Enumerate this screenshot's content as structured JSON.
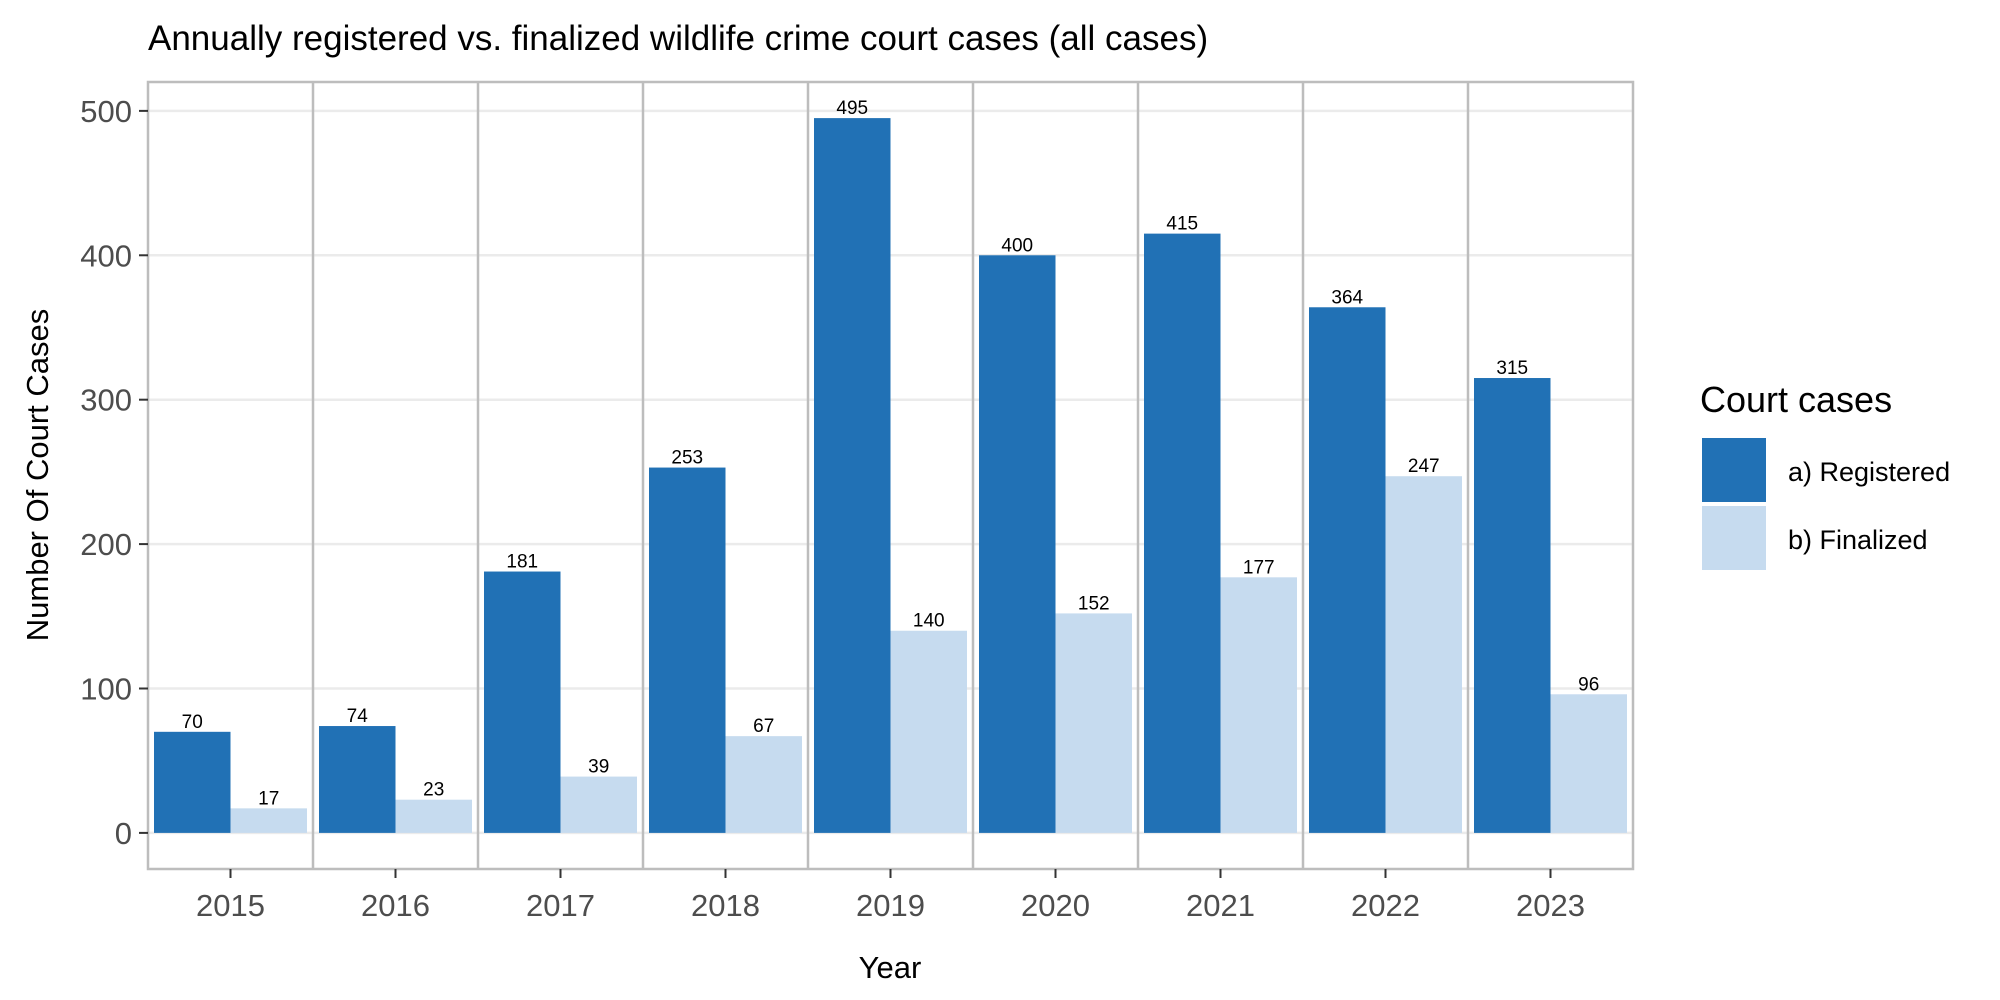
{
  "chart_data": {
    "type": "bar",
    "title": "Annually registered vs. finalized wildlife crime court cases (all cases)",
    "xlabel": "Year",
    "ylabel": "Number Of Court Cases",
    "categories": [
      "2015",
      "2016",
      "2017",
      "2018",
      "2019",
      "2020",
      "2021",
      "2022",
      "2023"
    ],
    "series": [
      {
        "name": "a) Registered",
        "color": "#2171b5",
        "values": [
          70,
          74,
          181,
          253,
          495,
          400,
          415,
          364,
          315
        ]
      },
      {
        "name": "b) Finalized",
        "color": "#c6dbef",
        "values": [
          17,
          23,
          39,
          67,
          140,
          152,
          177,
          247,
          96
        ]
      }
    ],
    "yticks": [
      0,
      100,
      200,
      300,
      400,
      500
    ],
    "ylim": [
      -25,
      520
    ],
    "grid": true,
    "legend": {
      "title": "Court cases",
      "position": "right"
    }
  }
}
